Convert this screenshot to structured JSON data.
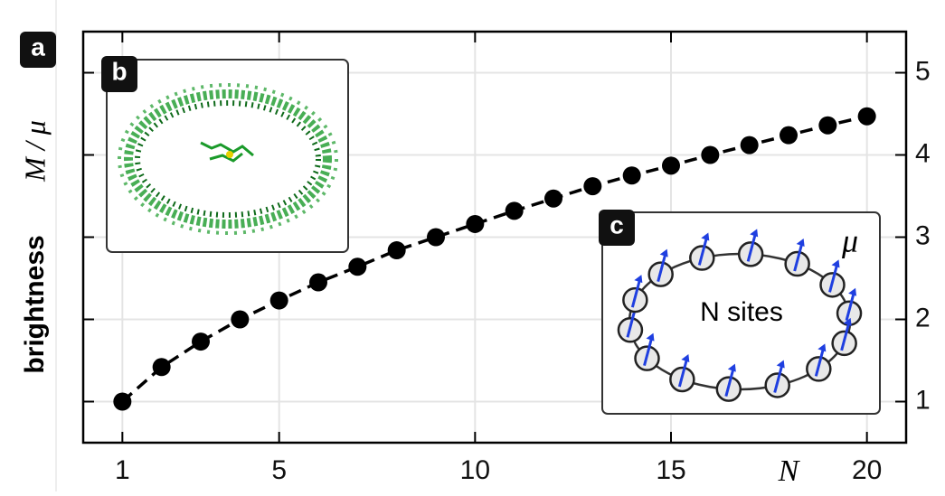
{
  "chart_data": {
    "type": "line",
    "panel_labels": [
      "a",
      "b",
      "c"
    ],
    "ylabel": "brightness",
    "ylabel_symbol": "M / μ",
    "xlabel": "N",
    "inset_text": "N sites",
    "inset_symbol": "μ",
    "x": [
      1,
      2,
      3,
      4,
      5,
      6,
      7,
      8,
      9,
      10,
      11,
      12,
      13,
      14,
      15,
      16,
      17,
      18,
      19,
      20
    ],
    "series": [
      {
        "color": "#000000",
        "values": [
          1.0,
          1.42,
          1.73,
          2.0,
          2.23,
          2.45,
          2.64,
          2.84,
          3.0,
          3.16,
          3.32,
          3.47,
          3.62,
          3.75,
          3.87,
          4.0,
          4.12,
          4.24,
          4.36,
          4.47
        ]
      }
    ],
    "xlim": [
      0,
      21
    ],
    "ylim": [
      0.5,
      5.5
    ],
    "xticks": [
      1,
      5,
      10,
      15,
      20
    ],
    "yticks": [
      1,
      2,
      3,
      4,
      5
    ],
    "grid": true
  }
}
